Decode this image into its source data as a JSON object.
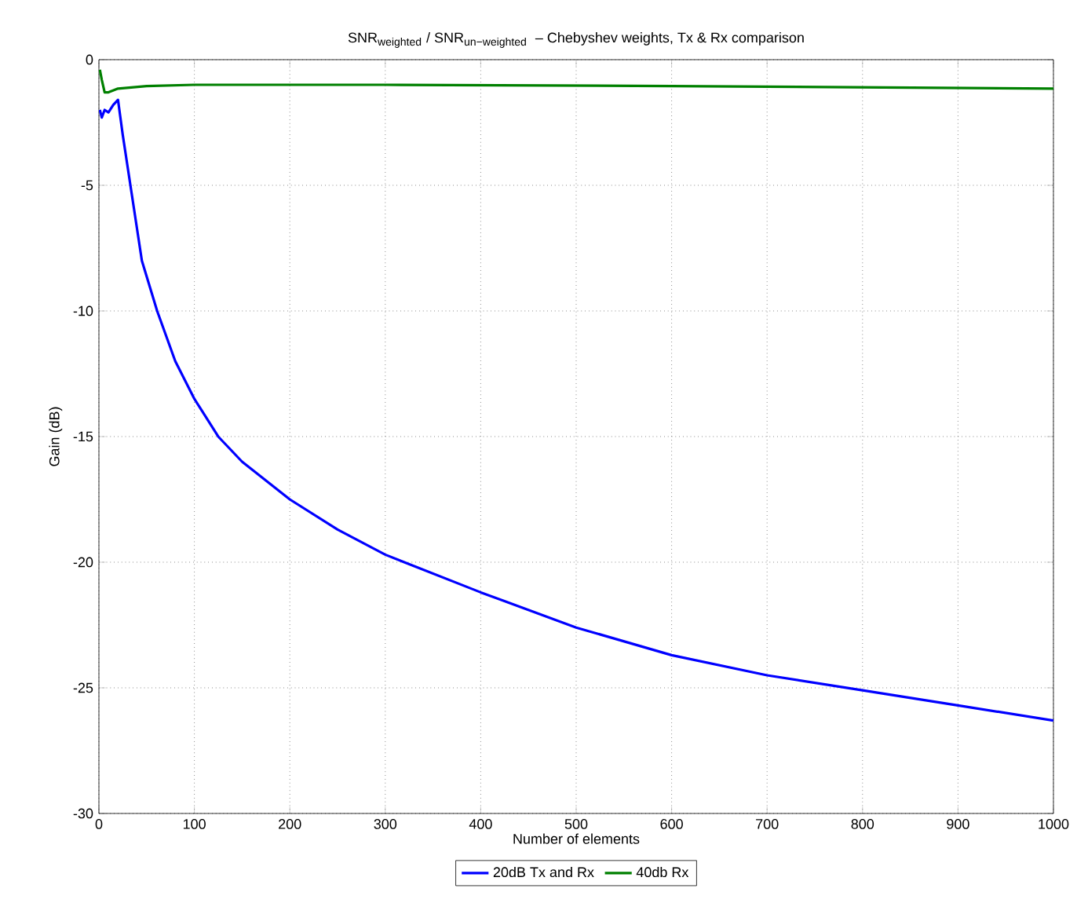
{
  "chart_data": {
    "type": "line",
    "title": "\\mbox{SNR}_{\\mbox{\\scriptsize weighted}}\\mbox{ / SNR}_{\\mbox{\\scriptsize un−weighted}}\\mbox{ \\ – Chebyshev weights, Tx \\& Rx comparison}",
    "xlabel": "Number of elements",
    "ylabel": "Gain (dB)",
    "xlim": [
      0,
      1000
    ],
    "ylim": [
      -30,
      0
    ],
    "xticks": [
      0,
      100,
      200,
      300,
      400,
      500,
      600,
      700,
      800,
      900,
      1000
    ],
    "yticks": [
      -30,
      -25,
      -20,
      -15,
      -10,
      -5,
      0
    ],
    "grid": true,
    "legend": "bottom",
    "line_style": "solid",
    "marker": "none",
    "series": [
      {
        "name": "20dB Tx and Rx",
        "color": "#0000ff",
        "x": [
          1,
          3,
          6,
          10,
          15,
          20,
          25,
          33,
          45,
          61,
          80,
          100,
          125,
          150,
          200,
          250,
          300,
          400,
          500,
          600,
          700,
          800,
          900,
          1000
        ],
        "values": [
          -2.0,
          -2.3,
          -2.0,
          -2.1,
          -1.8,
          -1.6,
          -3,
          -5,
          -8,
          -10,
          -12,
          -13.5,
          -15,
          -16,
          -17.5,
          -18.7,
          -19.7,
          -21.2,
          -22.6,
          -23.7,
          -24.5,
          -25.1,
          -25.7,
          -26.3
        ]
      },
      {
        "name": "40db Rx",
        "color": "#008000",
        "x": [
          1,
          3,
          6,
          10,
          20,
          50,
          100,
          300,
          600,
          1000
        ],
        "values": [
          -0.4,
          -0.8,
          -1.3,
          -1.3,
          -1.15,
          -1.05,
          -1.0,
          -1.0,
          -1.05,
          -1.15
        ]
      }
    ]
  }
}
